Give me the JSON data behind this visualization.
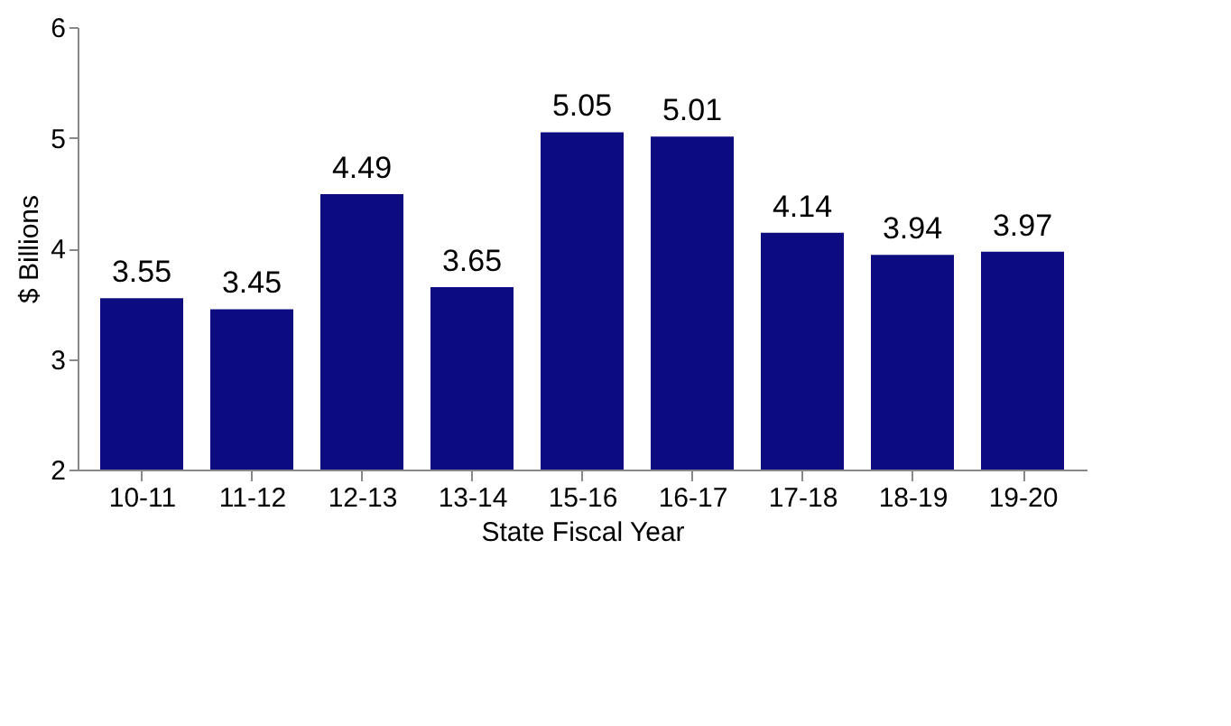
{
  "chart_data": {
    "type": "bar",
    "xlabel": "State Fiscal Year",
    "ylabel": "$ Billions",
    "categories": [
      "10-11",
      "11-12",
      "12-13",
      "13-14",
      "15-16",
      "16-17",
      "17-18",
      "18-19",
      "19-20"
    ],
    "values": [
      3.55,
      3.45,
      4.49,
      3.65,
      5.05,
      5.01,
      4.14,
      3.94,
      3.97
    ],
    "color": "#0c0c80",
    "ylim": [
      2,
      6
    ],
    "yticks": [
      2,
      3,
      4,
      5,
      6
    ],
    "grid": false,
    "data_labels": true
  }
}
